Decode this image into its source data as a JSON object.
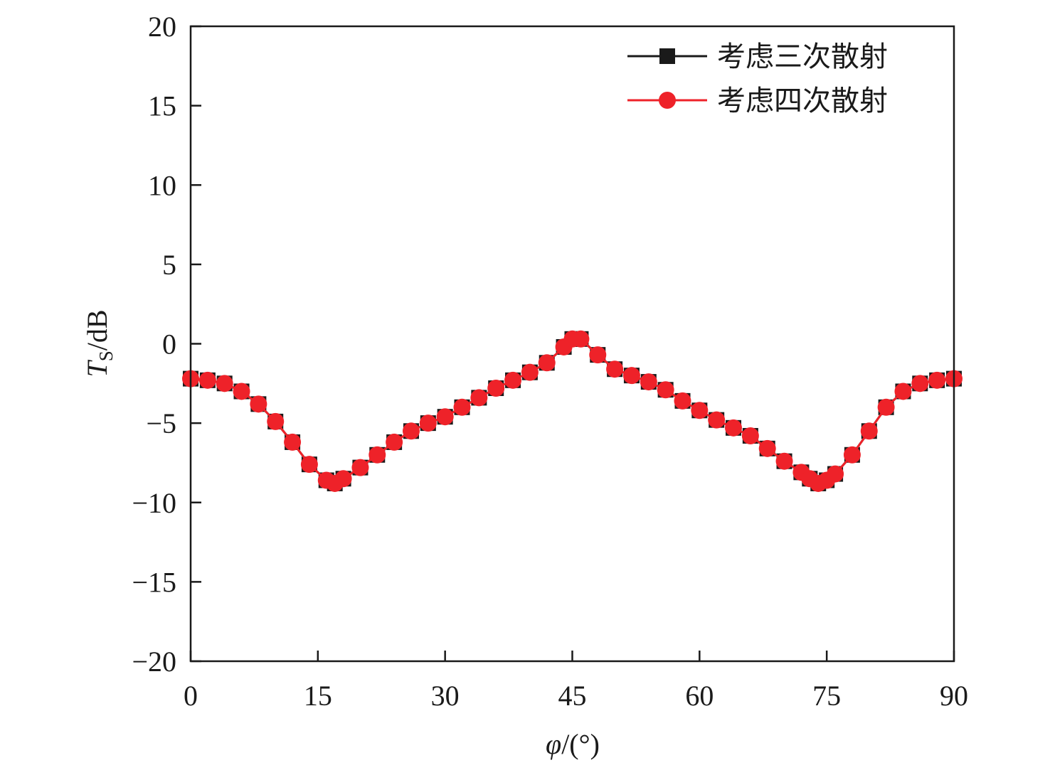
{
  "chart_data": {
    "type": "line",
    "title": "",
    "xlabel": {
      "symbol": "φ",
      "unit": "/(°)"
    },
    "ylabel": {
      "symbol": "T",
      "subscript": "S",
      "unit": "/dB"
    },
    "xlim": [
      0,
      90
    ],
    "ylim": [
      -20,
      20
    ],
    "x_ticks": [
      0,
      15,
      30,
      45,
      60,
      75,
      90
    ],
    "y_ticks": [
      20,
      15,
      10,
      5,
      0,
      -5,
      -10,
      -15,
      -20
    ],
    "x_tick_labels": [
      "0",
      "15",
      "30",
      "45",
      "60",
      "75",
      "90"
    ],
    "y_tick_labels": [
      "20",
      "15",
      "10",
      "5",
      "0",
      "−5",
      "−10",
      "−15",
      "−20"
    ],
    "grid": false,
    "legend_position": "top-right",
    "series": [
      {
        "name": "考虑三次散射",
        "color": "#1a1a1a",
        "marker": "square",
        "x": [
          0,
          2,
          4,
          6,
          8,
          10,
          12,
          14,
          16,
          17,
          18,
          20,
          22,
          24,
          26,
          28,
          30,
          32,
          34,
          36,
          38,
          40,
          42,
          44,
          45,
          46,
          48,
          50,
          52,
          54,
          56,
          58,
          60,
          62,
          64,
          66,
          68,
          70,
          72,
          73,
          74,
          75,
          76,
          78,
          80,
          82,
          84,
          86,
          88,
          90
        ],
        "y": [
          -2.2,
          -2.3,
          -2.5,
          -3.0,
          -3.8,
          -4.9,
          -6.2,
          -7.6,
          -8.6,
          -8.8,
          -8.5,
          -7.8,
          -7.0,
          -6.2,
          -5.5,
          -5.0,
          -4.6,
          -4.0,
          -3.4,
          -2.8,
          -2.3,
          -1.8,
          -1.2,
          -0.2,
          0.3,
          0.3,
          -0.7,
          -1.6,
          -2.0,
          -2.4,
          -2.9,
          -3.6,
          -4.2,
          -4.8,
          -5.3,
          -5.8,
          -6.6,
          -7.4,
          -8.1,
          -8.5,
          -8.8,
          -8.6,
          -8.2,
          -7.0,
          -5.5,
          -4.0,
          -3.0,
          -2.5,
          -2.3,
          -2.2
        ]
      },
      {
        "name": "考虑四次散射",
        "color": "#ee2229",
        "marker": "circle",
        "x": [
          0,
          2,
          4,
          6,
          8,
          10,
          12,
          14,
          16,
          17,
          18,
          20,
          22,
          24,
          26,
          28,
          30,
          32,
          34,
          36,
          38,
          40,
          42,
          44,
          45,
          46,
          48,
          50,
          52,
          54,
          56,
          58,
          60,
          62,
          64,
          66,
          68,
          70,
          72,
          73,
          74,
          75,
          76,
          78,
          80,
          82,
          84,
          86,
          88,
          90
        ],
        "y": [
          -2.2,
          -2.3,
          -2.5,
          -3.0,
          -3.8,
          -4.9,
          -6.2,
          -7.6,
          -8.6,
          -8.8,
          -8.5,
          -7.8,
          -7.0,
          -6.2,
          -5.5,
          -5.0,
          -4.6,
          -4.0,
          -3.4,
          -2.8,
          -2.3,
          -1.8,
          -1.2,
          -0.2,
          0.3,
          0.3,
          -0.7,
          -1.6,
          -2.0,
          -2.4,
          -2.9,
          -3.6,
          -4.2,
          -4.8,
          -5.3,
          -5.8,
          -6.6,
          -7.4,
          -8.1,
          -8.5,
          -8.8,
          -8.6,
          -8.2,
          -7.0,
          -5.5,
          -4.0,
          -3.0,
          -2.5,
          -2.3,
          -2.2
        ]
      }
    ]
  }
}
